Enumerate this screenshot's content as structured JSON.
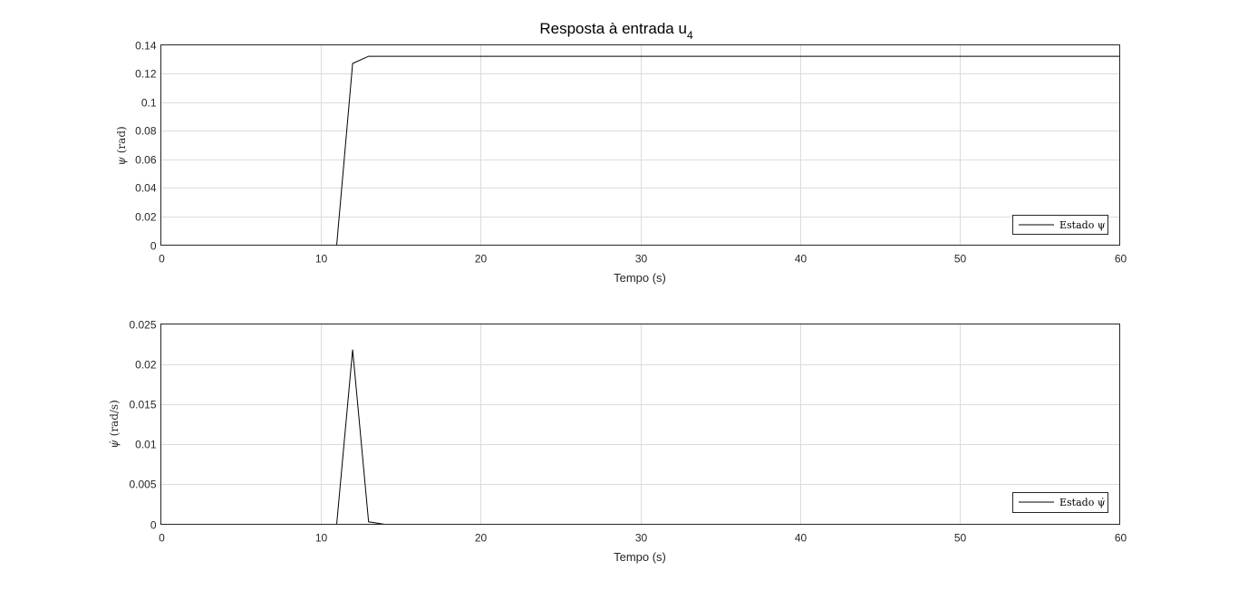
{
  "figure": {
    "title": "Resposta à entrada u",
    "title_subscript": "4"
  },
  "chart_data": [
    {
      "type": "line",
      "title": "Resposta à entrada u4",
      "xlabel": "Tempo (s)",
      "ylabel": "ψ (rad)",
      "ylabel_symbol": "ψ",
      "ylabel_unit": "(rad)",
      "xlim": [
        0,
        60
      ],
      "ylim": [
        0,
        0.14
      ],
      "xticks": [
        0,
        10,
        20,
        30,
        40,
        50,
        60
      ],
      "xtick_labels": [
        "0",
        "10",
        "20",
        "30",
        "40",
        "50",
        "60"
      ],
      "yticks": [
        0,
        0.02,
        0.04,
        0.06,
        0.08,
        0.1,
        0.12,
        0.14
      ],
      "ytick_labels": [
        "0",
        "0.02",
        "0.04",
        "0.06",
        "0.08",
        "0.1",
        "0.12",
        "0.14"
      ],
      "grid": true,
      "legend_position": "bottom-right",
      "series": [
        {
          "name": "Estado ψ",
          "color": "#000000",
          "x": [
            0,
            11,
            12,
            13,
            60
          ],
          "y": [
            0,
            0,
            0.127,
            0.132,
            0.132
          ]
        }
      ]
    },
    {
      "type": "line",
      "xlabel": "Tempo (s)",
      "ylabel": "ψ̇ (rad/s)",
      "ylabel_symbol": "ψ̇",
      "ylabel_unit": "(rad/s)",
      "xlim": [
        0,
        60
      ],
      "ylim": [
        0,
        0.025
      ],
      "xticks": [
        0,
        10,
        20,
        30,
        40,
        50,
        60
      ],
      "xtick_labels": [
        "0",
        "10",
        "20",
        "30",
        "40",
        "50",
        "60"
      ],
      "yticks": [
        0,
        0.005,
        0.01,
        0.015,
        0.02,
        0.025
      ],
      "ytick_labels": [
        "0",
        "0.005",
        "0.01",
        "0.015",
        "0.02",
        "0.025"
      ],
      "grid": true,
      "legend_position": "bottom-right",
      "series": [
        {
          "name": "Estado ψ̇",
          "color": "#000000",
          "x": [
            0,
            11,
            12,
            13,
            14,
            60
          ],
          "y": [
            0,
            0,
            0.0218,
            0.0003,
            0,
            0
          ]
        }
      ]
    }
  ]
}
